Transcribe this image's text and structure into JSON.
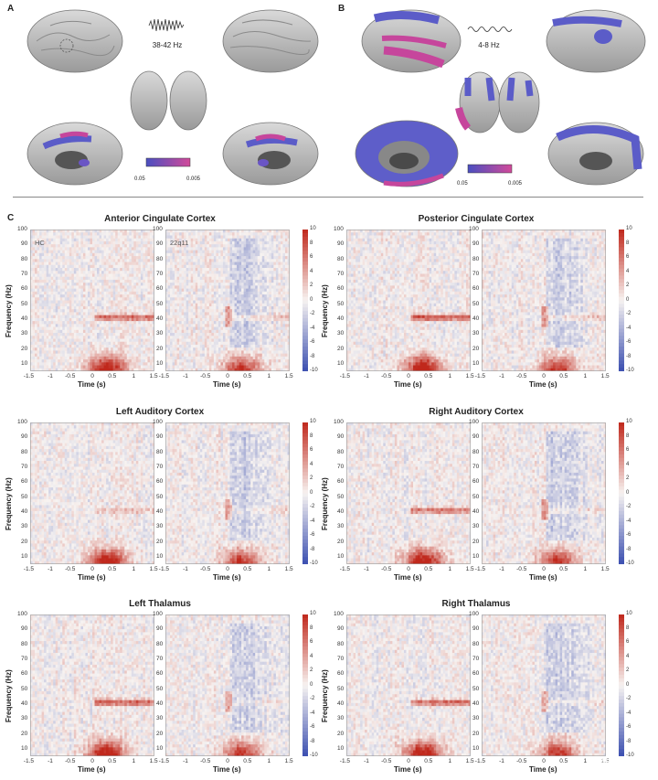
{
  "panel_a": {
    "letter": "A",
    "freq_label": "38-42 Hz",
    "scale_min": "0.05",
    "scale_max": "0.005"
  },
  "panel_b": {
    "letter": "B",
    "freq_label": "4-8 Hz",
    "scale_min": "0.05",
    "scale_max": "0.005"
  },
  "panel_c": {
    "letter": "C",
    "conditions": [
      "HC",
      "22q11"
    ],
    "ylabel": "Frequency (Hz)",
    "xlabel": "Time (s)",
    "x_ticks": [
      "-1.5",
      "-1",
      "-0.5",
      "0",
      "0.5",
      "1",
      "1.5"
    ],
    "y_ticks": [
      "100",
      "90",
      "80",
      "70",
      "60",
      "50",
      "40",
      "30",
      "20",
      "10"
    ],
    "colorbar_ticks": [
      "10",
      "8",
      "6",
      "4",
      "2",
      "0",
      "-2",
      "-4",
      "-6",
      "-8",
      "-10"
    ],
    "colors": {
      "pos": "#c0281c",
      "neg": "#3b4fb0",
      "neutral": "#f7f3f1"
    }
  },
  "chart_data": [
    {
      "type": "heatmap",
      "title": "Anterior Cingulate Cortex",
      "xlabel": "Time (s)",
      "ylabel": "Frequency (Hz)",
      "xlim": [
        -1.5,
        1.5
      ],
      "ylim": [
        5,
        100
      ],
      "clim": [
        -10,
        10
      ],
      "hc": {
        "gamma_40": 8,
        "theta_low": 9
      },
      "q22": {
        "gamma_40": 3,
        "theta_low": 7
      }
    },
    {
      "type": "heatmap",
      "title": "Posterior Cingulate Cortex",
      "xlabel": "Time (s)",
      "ylabel": "Frequency (Hz)",
      "xlim": [
        -1.5,
        1.5
      ],
      "ylim": [
        5,
        100
      ],
      "clim": [
        -10,
        10
      ],
      "hc": {
        "gamma_40": 9,
        "theta_low": 9
      },
      "q22": {
        "gamma_40": 3,
        "theta_low": 7
      }
    },
    {
      "type": "heatmap",
      "title": "Left Auditory Cortex",
      "xlabel": "Time (s)",
      "ylabel": "Frequency (Hz)",
      "xlim": [
        -1.5,
        1.5
      ],
      "ylim": [
        5,
        100
      ],
      "clim": [
        -10,
        10
      ],
      "hc": {
        "gamma_40": 3,
        "theta_low": 9
      },
      "q22": {
        "gamma_40": 2,
        "theta_low": 7
      }
    },
    {
      "type": "heatmap",
      "title": "Right Auditory Cortex",
      "xlabel": "Time (s)",
      "ylabel": "Frequency (Hz)",
      "xlim": [
        -1.5,
        1.5
      ],
      "ylim": [
        5,
        100
      ],
      "clim": [
        -10,
        10
      ],
      "hc": {
        "gamma_40": 7,
        "theta_low": 9
      },
      "q22": {
        "gamma_40": 2,
        "theta_low": 7
      }
    },
    {
      "type": "heatmap",
      "title": "Left Thalamus",
      "xlabel": "Time (s)",
      "ylabel": "Frequency (Hz)",
      "xlim": [
        -1.5,
        1.5
      ],
      "ylim": [
        5,
        100
      ],
      "clim": [
        -10,
        10
      ],
      "hc": {
        "gamma_40": 8,
        "theta_low": 9
      },
      "q22": {
        "gamma_40": 2,
        "theta_low": 7
      }
    },
    {
      "type": "heatmap",
      "title": "Right Thalamus",
      "xlabel": "Time (s)",
      "ylabel": "Frequency (Hz)",
      "xlim": [
        -1.5,
        1.5
      ],
      "ylim": [
        5,
        100
      ],
      "clim": [
        -10,
        10
      ],
      "hc": {
        "gamma_40": 8,
        "theta_low": 9
      },
      "q22": {
        "gamma_40": 2,
        "theta_low": 7
      }
    }
  ],
  "watermark": "知乎 @思影"
}
